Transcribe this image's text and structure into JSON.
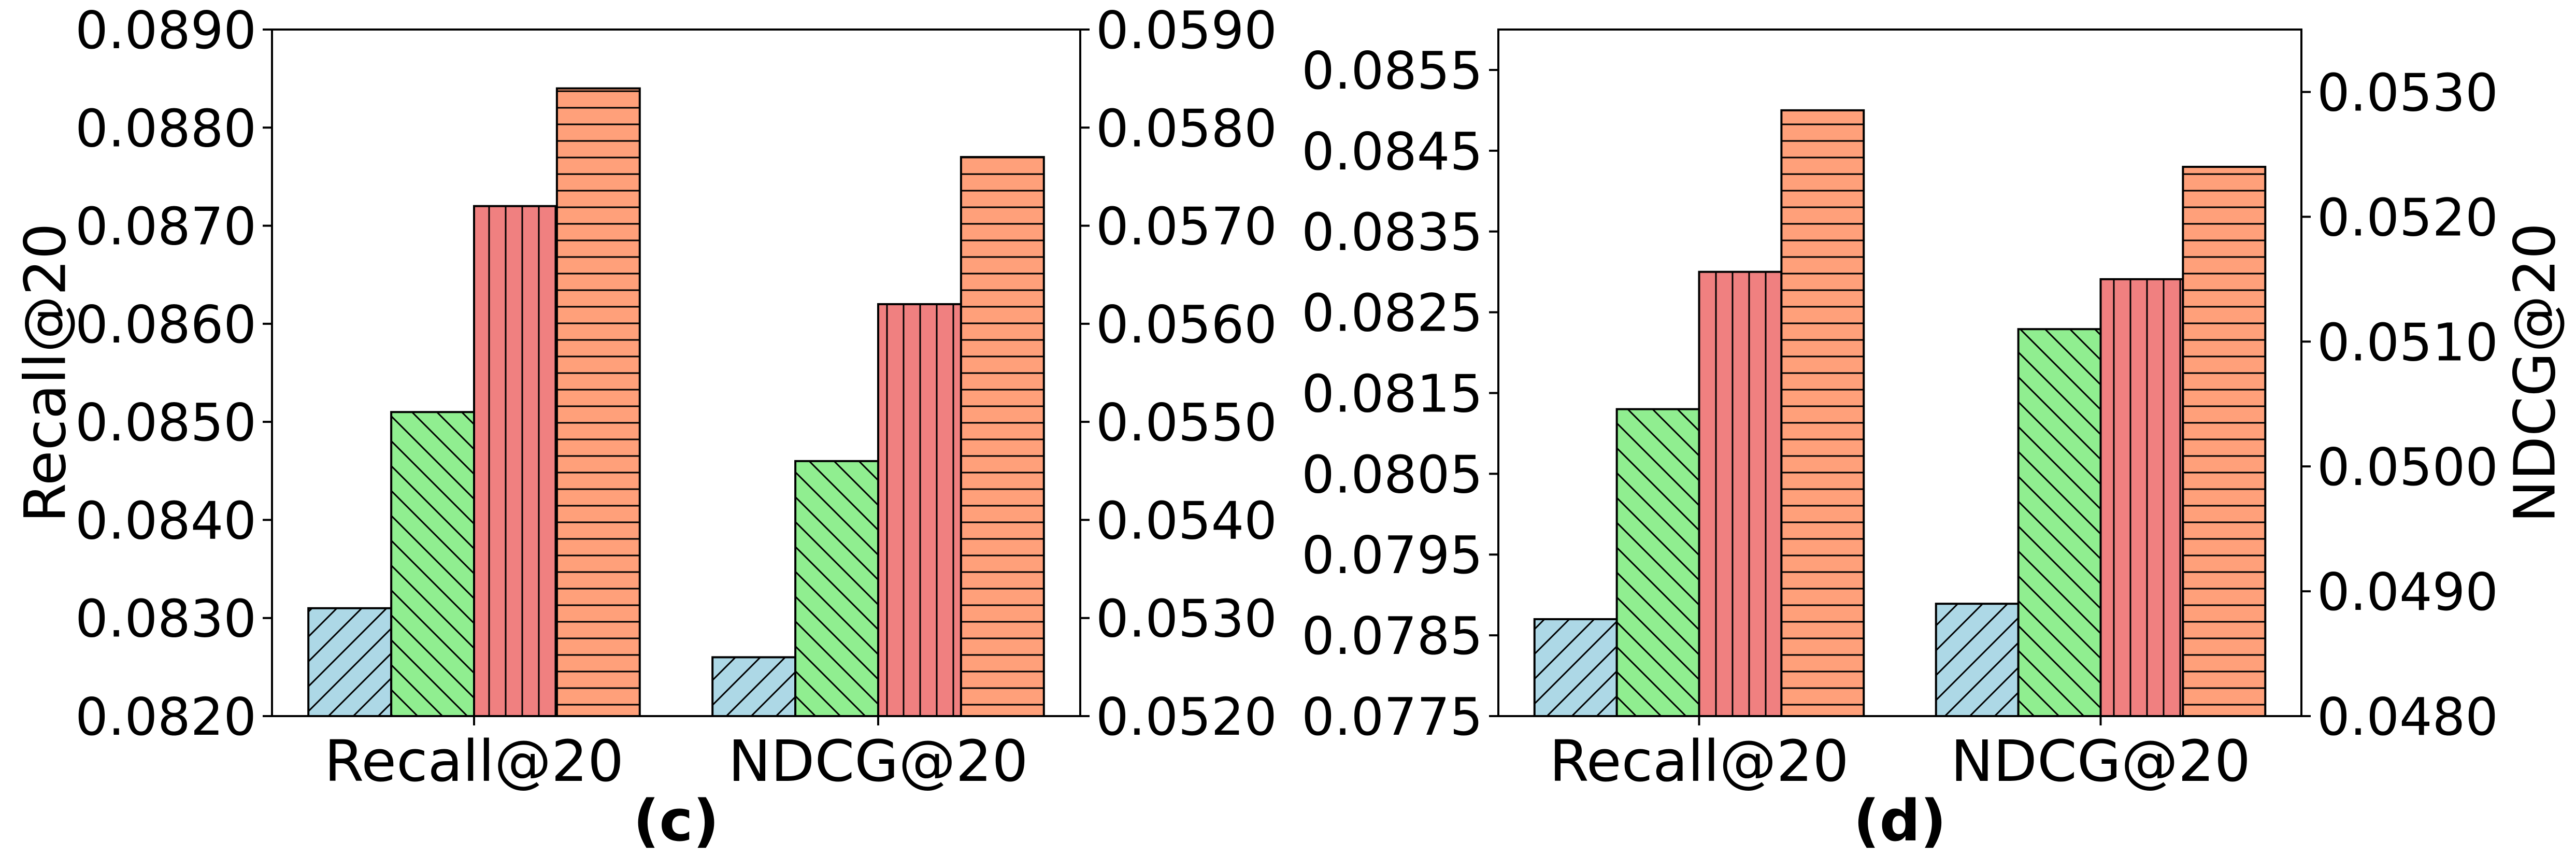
{
  "chart_data": [
    {
      "type": "bar",
      "panel_label": "(c)",
      "categories": [
        "Recall@20",
        "NDCG@20"
      ],
      "left_axis": {
        "label": "Recall@20",
        "ylim": [
          0.082,
          0.089
        ],
        "ticks": [
          "0.0820",
          "0.0830",
          "0.0840",
          "0.0850",
          "0.0860",
          "0.0870",
          "0.0880",
          "0.0890"
        ]
      },
      "right_axis": {
        "label": "",
        "ylim": [
          0.052,
          0.059
        ],
        "ticks": [
          "0.0520",
          "0.0530",
          "0.0540",
          "0.0550",
          "0.0560",
          "0.0570",
          "0.0580",
          "0.0590"
        ]
      },
      "series_styles": [
        {
          "color": "#add8e6",
          "hatch": "diag-up"
        },
        {
          "color": "#90ee90",
          "hatch": "diag-down"
        },
        {
          "color": "#f08080",
          "hatch": "vertical"
        },
        {
          "color": "#ffa07a",
          "hatch": "horizontal"
        }
      ],
      "groups": [
        {
          "category": "Recall@20",
          "axis": "left",
          "values": [
            0.0831,
            0.0851,
            0.0872,
            0.0884
          ]
        },
        {
          "category": "NDCG@20",
          "axis": "right",
          "values": [
            0.0526,
            0.0546,
            0.0562,
            0.0577
          ]
        }
      ]
    },
    {
      "type": "bar",
      "panel_label": "(d)",
      "categories": [
        "Recall@20",
        "NDCG@20"
      ],
      "left_axis": {
        "label": "",
        "ylim": [
          0.0775,
          0.086
        ],
        "ticks": [
          "0.0775",
          "0.0785",
          "0.0795",
          "0.0805",
          "0.0815",
          "0.0825",
          "0.0835",
          "0.0845",
          "0.0855"
        ]
      },
      "right_axis": {
        "label": "NDCG@20",
        "ylim": [
          0.048,
          0.0535
        ],
        "ticks": [
          "0.0480",
          "0.0490",
          "0.0500",
          "0.0510",
          "0.0520",
          "0.0530"
        ]
      },
      "series_styles": [
        {
          "color": "#add8e6",
          "hatch": "diag-up"
        },
        {
          "color": "#90ee90",
          "hatch": "diag-down"
        },
        {
          "color": "#f08080",
          "hatch": "vertical"
        },
        {
          "color": "#ffa07a",
          "hatch": "horizontal"
        }
      ],
      "groups": [
        {
          "category": "Recall@20",
          "axis": "left",
          "values": [
            0.0787,
            0.0813,
            0.083,
            0.085
          ]
        },
        {
          "category": "NDCG@20",
          "axis": "right",
          "values": [
            0.0489,
            0.0511,
            0.0515,
            0.0524
          ]
        }
      ]
    }
  ]
}
